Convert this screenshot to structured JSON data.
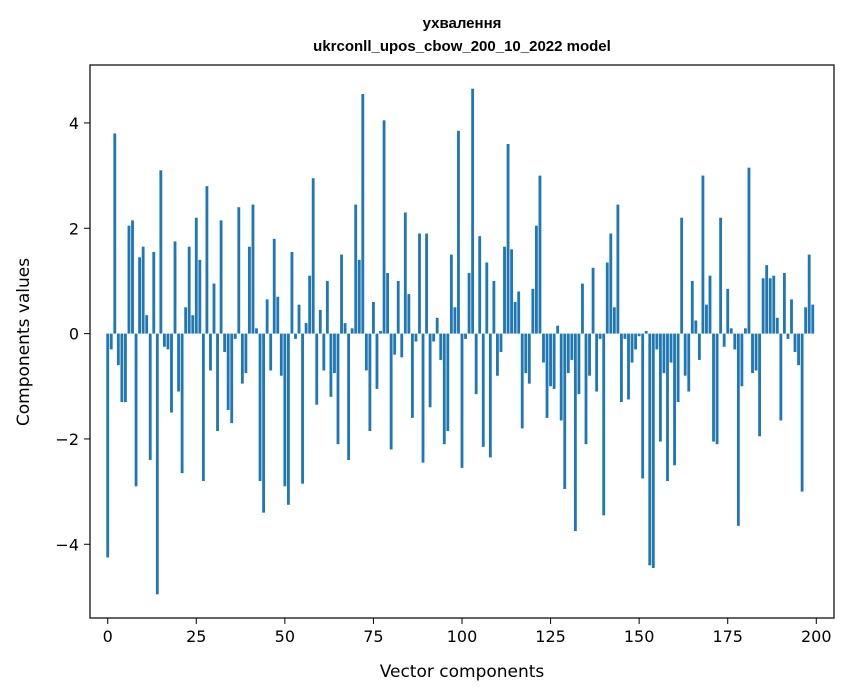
{
  "chart_data": {
    "type": "bar",
    "title": "ухвалення",
    "subtitle": "ukrconll_upos_cbow_200_10_2022 model",
    "xlabel": "Vector components",
    "ylabel": "Components values",
    "xlim": [
      -5,
      205
    ],
    "ylim": [
      -5.4,
      5.1
    ],
    "xticks": [
      0,
      25,
      50,
      75,
      100,
      125,
      150,
      175,
      200
    ],
    "yticks": [
      -4,
      -2,
      0,
      2,
      4
    ],
    "xtick_labels": [
      "0",
      "25",
      "50",
      "75",
      "100",
      "125",
      "150",
      "175",
      "200"
    ],
    "ytick_labels": [
      "−4",
      "−2",
      "0",
      "2",
      "4"
    ],
    "grid": false,
    "legend": "none",
    "bar_color": "#1f77b4",
    "values": [
      -4.25,
      -0.3,
      3.8,
      -0.6,
      -1.3,
      -1.3,
      2.05,
      2.15,
      -2.9,
      1.45,
      1.65,
      0.35,
      -2.4,
      1.55,
      -4.95,
      3.1,
      -0.25,
      -0.3,
      -1.5,
      1.75,
      -1.1,
      -2.65,
      0.5,
      1.65,
      0.35,
      2.2,
      1.4,
      -2.8,
      2.8,
      -0.7,
      0.95,
      -1.85,
      2.15,
      -0.35,
      -1.45,
      -1.7,
      -0.1,
      2.4,
      -0.95,
      -0.75,
      1.65,
      2.45,
      0.1,
      -2.8,
      -3.4,
      0.65,
      -0.7,
      1.8,
      0.7,
      -0.8,
      -2.9,
      -3.25,
      1.55,
      -0.1,
      0.55,
      -2.85,
      0.2,
      1.1,
      2.95,
      -1.35,
      0.45,
      -0.7,
      1.0,
      -1.2,
      -0.75,
      -2.1,
      1.5,
      0.2,
      -2.4,
      0.1,
      2.45,
      1.4,
      4.55,
      -0.7,
      -1.85,
      0.6,
      -1.05,
      0.05,
      4.05,
      1.15,
      -2.2,
      -0.4,
      1.0,
      -0.45,
      2.3,
      0.75,
      -1.6,
      -0.15,
      1.9,
      -2.45,
      1.9,
      -1.4,
      -0.15,
      0.3,
      -0.5,
      -2.1,
      -1.85,
      1.5,
      0.5,
      3.85,
      -2.55,
      -0.1,
      1.15,
      4.65,
      -1.15,
      1.85,
      -2.15,
      1.35,
      -2.35,
      1.0,
      -0.8,
      -0.35,
      1.65,
      3.6,
      1.6,
      0.6,
      0.8,
      -1.8,
      -0.75,
      -0.95,
      0.85,
      2.05,
      3.0,
      -0.55,
      -1.6,
      -1.0,
      -1.05,
      0.15,
      -1.65,
      -2.95,
      -0.75,
      -0.5,
      -3.75,
      -1.15,
      0.95,
      -2.1,
      -0.8,
      1.25,
      -1.1,
      -0.1,
      -3.45,
      1.35,
      1.9,
      0.5,
      2.45,
      -1.3,
      -0.1,
      -1.25,
      -0.55,
      -0.3,
      -0.05,
      -2.75,
      0.05,
      -4.4,
      -4.45,
      -0.3,
      -2.05,
      -0.75,
      -2.8,
      -0.55,
      -2.5,
      -1.3,
      2.2,
      -0.8,
      -1.1,
      1.0,
      0.25,
      -0.5,
      3.0,
      0.55,
      1.1,
      -2.05,
      -2.1,
      2.2,
      -0.25,
      0.85,
      0.1,
      -0.3,
      -3.65,
      -1.0,
      0.1,
      3.15,
      -0.75,
      -0.7,
      -1.95,
      1.05,
      1.3,
      1.05,
      1.1,
      0.3,
      -1.65,
      1.15,
      -0.1,
      0.65,
      -0.35,
      -0.6,
      -3.0,
      0.5,
      1.5,
      0.55
    ]
  }
}
